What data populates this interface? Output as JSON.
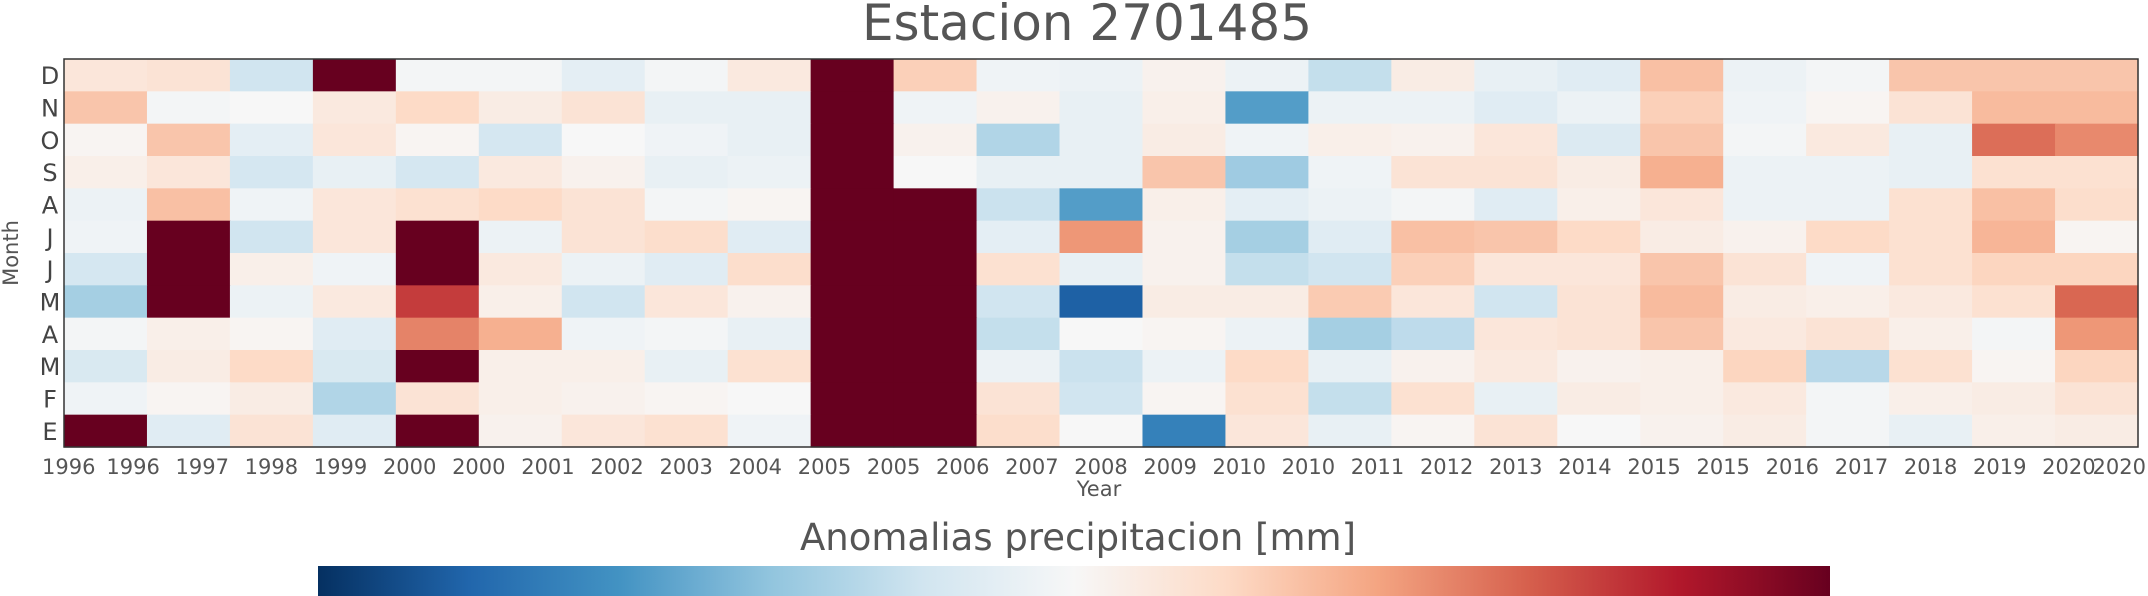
{
  "chart_data": {
    "type": "heatmap",
    "title": "Estacion 2701485",
    "xlabel": "Year",
    "ylabel": "Month",
    "x_tick_labels": [
      "1996",
      "1996",
      "1997",
      "1998",
      "1999",
      "2000",
      "2000",
      "2001",
      "2002",
      "2003",
      "2004",
      "2005",
      "2005",
      "2006",
      "2007",
      "2008",
      "2009",
      "2010",
      "2010",
      "2011",
      "2012",
      "2013",
      "2014",
      "2015",
      "2015",
      "2016",
      "2017",
      "2018",
      "2019",
      "2020",
      "2020"
    ],
    "y_labels_top_to_bottom": [
      "D",
      "N",
      "O",
      "S",
      "A",
      "J",
      "J",
      "M",
      "A",
      "M",
      "F",
      "E"
    ],
    "years": [
      "1996",
      "1997",
      "1998",
      "1999",
      "2000",
      "2001",
      "2002",
      "2003",
      "2004",
      "2005",
      "2006",
      "2007",
      "2008",
      "2009",
      "2010",
      "2011",
      "2012",
      "2013",
      "2014",
      "2015",
      "2016",
      "2017",
      "2018",
      "2019",
      "2020"
    ],
    "missing_color": "#67001f",
    "values_note": "rows top to bottom D..E, columns by year; anomaly in mm, null = missing",
    "values": [
      [
        30,
        35,
        -50,
        null,
        -5,
        -5,
        -25,
        -5,
        25,
        null,
        60,
        -10,
        -15,
        10,
        -15,
        -60,
        20,
        -20,
        -30,
        75,
        -15,
        -5,
        70,
        70,
        70
      ],
      [
        70,
        -5,
        0,
        25,
        50,
        20,
        35,
        -20,
        -20,
        null,
        -10,
        10,
        -20,
        15,
        -140,
        -15,
        -15,
        -30,
        -15,
        60,
        -10,
        5,
        35,
        80,
        80
      ],
      [
        5,
        70,
        -25,
        30,
        5,
        -45,
        0,
        -10,
        -20,
        null,
        10,
        -75,
        -20,
        20,
        -10,
        15,
        10,
        30,
        -35,
        70,
        -5,
        25,
        -20,
        140,
        120
      ],
      [
        15,
        30,
        -45,
        -20,
        -45,
        25,
        10,
        -20,
        -15,
        null,
        0,
        -20,
        -20,
        70,
        -90,
        -10,
        35,
        35,
        20,
        90,
        -15,
        -15,
        -20,
        40,
        40
      ],
      [
        -15,
        75,
        -10,
        30,
        40,
        50,
        35,
        -5,
        5,
        null,
        null,
        -55,
        -140,
        15,
        -25,
        -15,
        -5,
        -30,
        15,
        30,
        -15,
        -15,
        40,
        75,
        45
      ],
      [
        -10,
        null,
        -50,
        30,
        null,
        -15,
        35,
        45,
        -30,
        null,
        null,
        -25,
        110,
        10,
        -85,
        -30,
        75,
        70,
        50,
        20,
        10,
        50,
        40,
        85,
        5
      ],
      [
        -45,
        null,
        15,
        -10,
        null,
        25,
        -15,
        -30,
        45,
        null,
        null,
        40,
        -20,
        10,
        -60,
        -50,
        60,
        30,
        30,
        70,
        35,
        -10,
        40,
        55,
        55
      ],
      [
        -85,
        null,
        -15,
        25,
        175,
        15,
        -50,
        30,
        10,
        null,
        null,
        -50,
        -205,
        20,
        20,
        65,
        30,
        -50,
        35,
        80,
        20,
        15,
        25,
        40,
        145
      ],
      [
        -5,
        15,
        5,
        -30,
        125,
        90,
        -10,
        -5,
        -20,
        null,
        null,
        -60,
        0,
        5,
        -15,
        -85,
        -65,
        30,
        35,
        70,
        25,
        35,
        15,
        -5,
        110
      ],
      [
        -40,
        20,
        50,
        -40,
        null,
        15,
        15,
        -20,
        40,
        null,
        null,
        -15,
        -55,
        -15,
        50,
        -20,
        10,
        25,
        10,
        15,
        55,
        -70,
        40,
        5,
        55
      ],
      [
        -10,
        5,
        20,
        -75,
        35,
        15,
        10,
        5,
        0,
        null,
        null,
        35,
        -50,
        5,
        40,
        -60,
        40,
        -20,
        20,
        15,
        25,
        -5,
        15,
        20,
        35
      ],
      [
        null,
        -30,
        35,
        -30,
        null,
        10,
        30,
        40,
        -10,
        null,
        null,
        45,
        0,
        -170,
        30,
        -20,
        5,
        35,
        0,
        10,
        20,
        -5,
        -20,
        15,
        20
      ]
    ],
    "colorbar": {
      "title": "Anomalias precipitacion [mm]",
      "colormap": "RdBu_r",
      "vmin": -250,
      "vmax": 250
    }
  }
}
